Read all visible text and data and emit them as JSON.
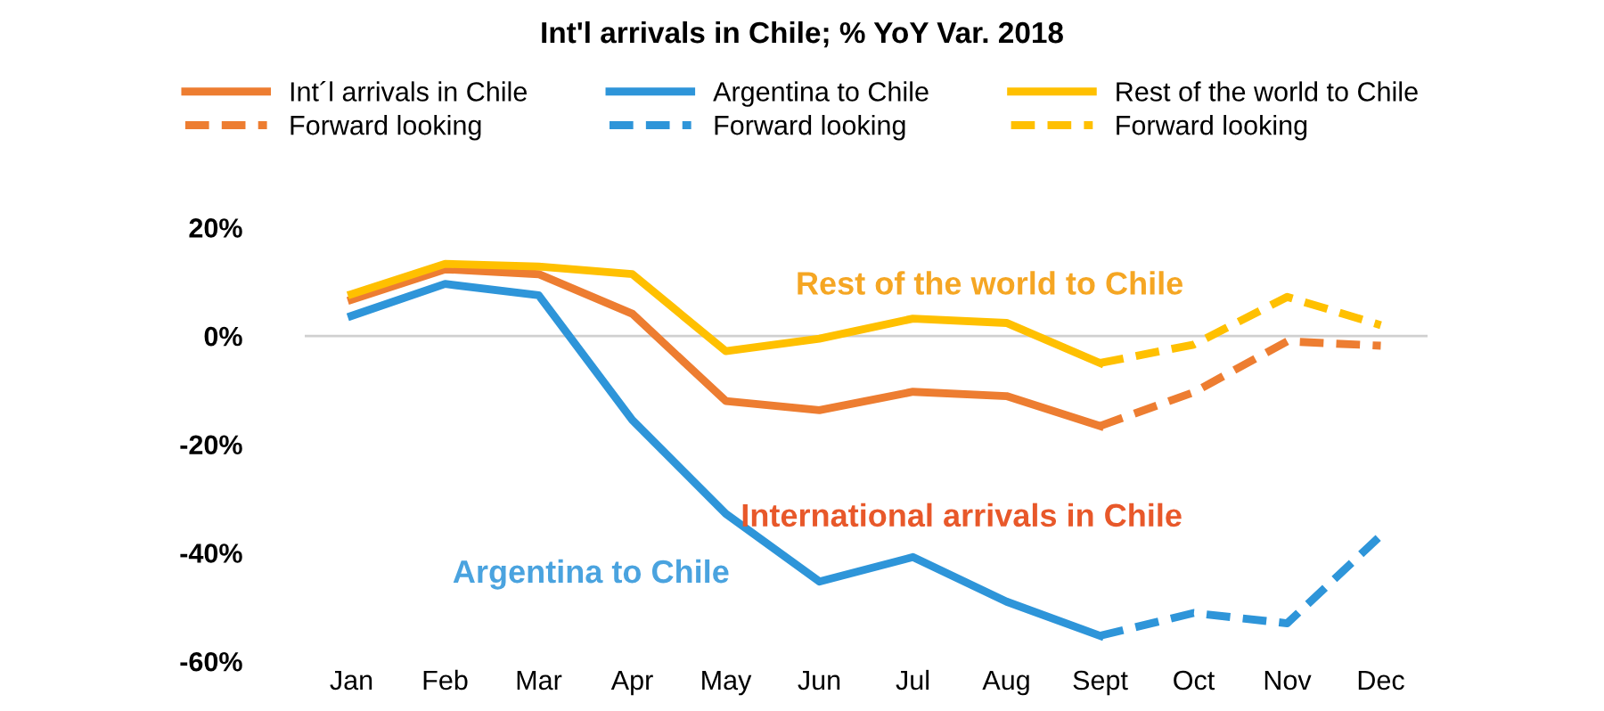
{
  "chart_data": {
    "type": "line",
    "title": "Int'l arrivals in Chile; % YoY Var. 2018",
    "categories": [
      "Jan",
      "Feb",
      "Mar",
      "Apr",
      "May",
      "Jun",
      "Jul",
      "Aug",
      "Sept",
      "Oct",
      "Nov",
      "Dec"
    ],
    "series": [
      {
        "name": "Int´l arrivals in Chile",
        "color": "#ed7d31",
        "line_style": "solid",
        "values": [
          6.7,
          12.3,
          11.4,
          4.1,
          -12.0,
          -13.7,
          -10.3,
          -11.1,
          -16.6,
          null,
          null,
          null
        ]
      },
      {
        "name": "Argentina to Chile",
        "color": "#2e95d9",
        "line_style": "solid",
        "values": [
          3.7,
          9.6,
          7.5,
          -15.5,
          -32.8,
          -45.3,
          -40.8,
          -49.0,
          -55.3,
          null,
          null,
          null
        ]
      },
      {
        "name": "Rest of the world to Chile",
        "color": "#ffc000",
        "line_style": "solid",
        "values": [
          7.7,
          13.3,
          12.8,
          11.4,
          -2.8,
          -0.5,
          3.2,
          2.4,
          -5.0,
          null,
          null,
          null
        ]
      },
      {
        "name": "Forward looking",
        "color": "#ed7d31",
        "line_style": "dashed",
        "values": [
          null,
          null,
          null,
          null,
          null,
          null,
          null,
          null,
          -16.6,
          -10.4,
          -1.0,
          -1.8
        ]
      },
      {
        "name": "Forward looking",
        "color": "#2e95d9",
        "line_style": "dashed",
        "values": [
          null,
          null,
          null,
          null,
          null,
          null,
          null,
          null,
          -55.3,
          -51.1,
          -53.0,
          -36.8
        ]
      },
      {
        "name": "Forward looking",
        "color": "#ffc000",
        "line_style": "dashed",
        "values": [
          null,
          null,
          null,
          null,
          null,
          null,
          null,
          null,
          -5.0,
          -1.6,
          7.2,
          2.0
        ]
      }
    ],
    "ylim": [
      -60,
      20
    ],
    "yticks": [
      {
        "value": 20,
        "label": "20%"
      },
      {
        "value": 0,
        "label": "0%"
      },
      {
        "value": -20,
        "label": "-20%"
      },
      {
        "value": -40,
        "label": "-40%"
      },
      {
        "value": -60,
        "label": "-60%"
      }
    ],
    "ref_lines": [
      {
        "axis": "y",
        "value": 0,
        "color": "#d0d0d0"
      }
    ],
    "annotations": [
      "Rest of the world to Chile",
      "International arrivals in Chile",
      "Argentina to Chile"
    ],
    "grid": false,
    "legend": "top",
    "marker": "none"
  }
}
